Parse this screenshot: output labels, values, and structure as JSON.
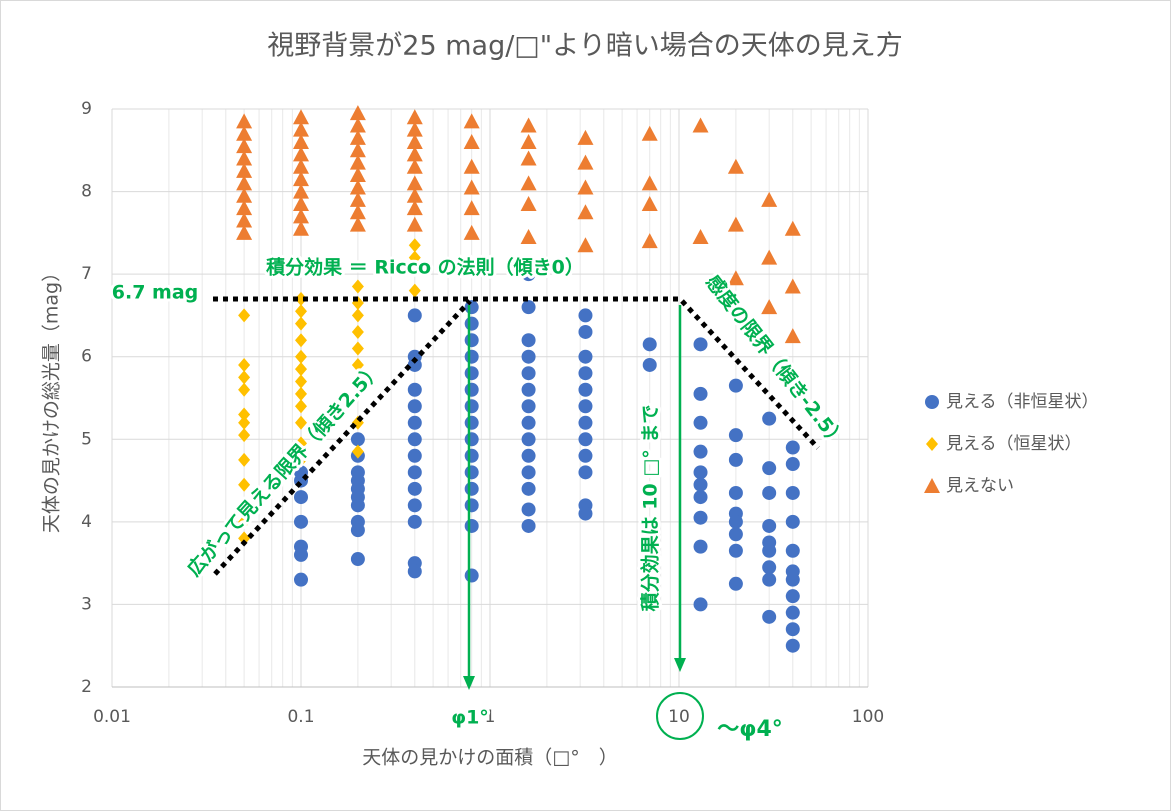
{
  "chart_data": {
    "type": "scatter",
    "title": "視野背景が25 mag/□\"より暗い場合の天体の見え方",
    "x_label": "天体の見かけの面積（□°　）",
    "y_label": "天体の見かけの総光量（mag）",
    "xscale": "log",
    "xlim": [
      0.01,
      100
    ],
    "xticks": [
      0.01,
      0.1,
      1,
      10,
      100
    ],
    "ylim": [
      2,
      9
    ],
    "yticks": [
      2,
      3,
      4,
      5,
      6,
      7,
      8,
      9
    ],
    "grid": true,
    "legend": "right",
    "series": [
      {
        "name": "見える（非恒星状）",
        "color": "#4472c4",
        "marker": "circle",
        "x": [
          0.1,
          0.1,
          0.1,
          0.1,
          0.1,
          0.1,
          0.1,
          0.2,
          0.2,
          0.2,
          0.2,
          0.2,
          0.2,
          0.2,
          0.2,
          0.2,
          0.2,
          0.4,
          0.4,
          0.4,
          0.4,
          0.4,
          0.4,
          0.4,
          0.4,
          0.4,
          0.4,
          0.4,
          0.4,
          0.4,
          0.4,
          0.8,
          0.8,
          0.8,
          0.8,
          0.8,
          0.8,
          0.8,
          0.8,
          0.8,
          0.8,
          0.8,
          0.8,
          0.8,
          0.8,
          0.8,
          1.6,
          1.6,
          1.6,
          1.6,
          1.6,
          1.6,
          1.6,
          1.6,
          1.6,
          1.6,
          1.6,
          1.6,
          1.6,
          1.6,
          3.2,
          3.2,
          3.2,
          3.2,
          3.2,
          3.2,
          3.2,
          3.2,
          3.2,
          3.2,
          3.2,
          3.2,
          7,
          7,
          13,
          13,
          13,
          13,
          13,
          13,
          13,
          13,
          13,
          13,
          20,
          20,
          20,
          20,
          20,
          20,
          20,
          20,
          20,
          30,
          30,
          30,
          30,
          30,
          30,
          30,
          30,
          30,
          40,
          40,
          40,
          40,
          40,
          40,
          40,
          40,
          40,
          40,
          40
        ],
        "values": [
          4.6,
          4.5,
          4.3,
          4.0,
          3.7,
          3.6,
          3.3,
          5.0,
          4.8,
          4.6,
          4.5,
          4.4,
          4.3,
          4.2,
          4.0,
          3.9,
          3.55,
          6.5,
          6.0,
          5.9,
          5.6,
          5.4,
          5.2,
          5.0,
          4.8,
          4.6,
          4.4,
          4.2,
          4.0,
          3.5,
          3.4,
          6.6,
          6.4,
          6.2,
          6.0,
          5.8,
          5.6,
          5.4,
          5.2,
          5.0,
          4.8,
          4.6,
          4.4,
          4.2,
          3.95,
          3.35,
          7.0,
          6.6,
          6.2,
          6.0,
          5.8,
          5.6,
          5.4,
          5.2,
          5.0,
          4.8,
          4.6,
          4.4,
          4.15,
          3.95,
          6.5,
          6.3,
          6.0,
          5.8,
          5.6,
          5.4,
          5.2,
          5.0,
          4.8,
          4.6,
          4.2,
          4.1,
          6.15,
          5.9,
          6.15,
          5.55,
          5.2,
          4.85,
          4.6,
          4.45,
          4.3,
          4.05,
          3.7,
          3.0,
          5.65,
          5.05,
          4.75,
          4.35,
          4.1,
          4.0,
          3.85,
          3.65,
          3.25,
          5.25,
          4.65,
          4.35,
          3.95,
          3.75,
          3.65,
          3.45,
          3.3,
          2.85,
          4.9,
          4.7,
          4.35,
          4.0,
          3.65,
          3.4,
          3.3,
          3.1,
          2.9,
          2.7,
          2.5
        ]
      },
      {
        "name": "見える（恒星状）",
        "color": "#ffc000",
        "marker": "diamond",
        "x": [
          0.05,
          0.05,
          0.05,
          0.05,
          0.05,
          0.05,
          0.05,
          0.05,
          0.05,
          0.05,
          0.05,
          0.1,
          0.1,
          0.1,
          0.1,
          0.1,
          0.1,
          0.1,
          0.1,
          0.1,
          0.1,
          0.1,
          0.1,
          0.2,
          0.2,
          0.2,
          0.2,
          0.2,
          0.2,
          0.2,
          0.2,
          0.2,
          0.4,
          0.4,
          0.4
        ],
        "values": [
          6.5,
          5.9,
          5.75,
          5.6,
          5.3,
          5.2,
          5.05,
          4.75,
          4.45,
          4.0,
          3.8,
          6.7,
          6.55,
          6.4,
          6.2,
          6.0,
          5.85,
          5.7,
          5.55,
          5.4,
          5.2,
          4.95,
          4.75,
          6.85,
          6.65,
          6.5,
          6.3,
          6.1,
          5.9,
          5.7,
          5.2,
          4.85,
          7.35,
          7.2,
          6.8
        ]
      },
      {
        "name": "見えない",
        "color": "#ed7d31",
        "marker": "triangle",
        "x": [
          0.05,
          0.05,
          0.05,
          0.05,
          0.05,
          0.05,
          0.05,
          0.05,
          0.05,
          0.05,
          0.1,
          0.1,
          0.1,
          0.1,
          0.1,
          0.1,
          0.1,
          0.1,
          0.1,
          0.1,
          0.2,
          0.2,
          0.2,
          0.2,
          0.2,
          0.2,
          0.2,
          0.2,
          0.2,
          0.2,
          0.4,
          0.4,
          0.4,
          0.4,
          0.4,
          0.4,
          0.4,
          0.4,
          0.4,
          0.8,
          0.8,
          0.8,
          0.8,
          0.8,
          0.8,
          1.6,
          1.6,
          1.6,
          1.6,
          1.6,
          1.6,
          3.2,
          3.2,
          3.2,
          3.2,
          3.2,
          7,
          7,
          7,
          7,
          13,
          13,
          20,
          20,
          20,
          30,
          30,
          30,
          40,
          40,
          40
        ],
        "values": [
          8.85,
          8.7,
          8.55,
          8.4,
          8.25,
          8.1,
          7.95,
          7.8,
          7.65,
          7.5,
          8.9,
          8.75,
          8.6,
          8.45,
          8.3,
          8.15,
          8.0,
          7.85,
          7.7,
          7.55,
          8.95,
          8.8,
          8.65,
          8.5,
          8.35,
          8.2,
          8.05,
          7.9,
          7.75,
          7.6,
          8.9,
          8.75,
          8.6,
          8.45,
          8.3,
          8.1,
          7.95,
          7.8,
          7.6,
          8.85,
          8.6,
          8.3,
          8.05,
          7.8,
          7.5,
          8.8,
          8.6,
          8.4,
          8.1,
          7.85,
          7.45,
          8.65,
          8.35,
          8.05,
          7.75,
          7.35,
          8.7,
          8.1,
          7.85,
          7.4,
          8.8,
          7.45,
          8.3,
          7.6,
          6.95,
          7.9,
          7.2,
          6.6,
          7.55,
          6.85,
          6.25
        ]
      }
    ],
    "annotations": [
      "6.7 mag",
      "積分効果 ＝ Ricco の法則（傾き0）",
      "広がって見える限界（傾き2.5）",
      "感度の限界（傾き-2.5）",
      "積分効果は 10 □° まで",
      "φ1°",
      "～φ4°"
    ]
  }
}
